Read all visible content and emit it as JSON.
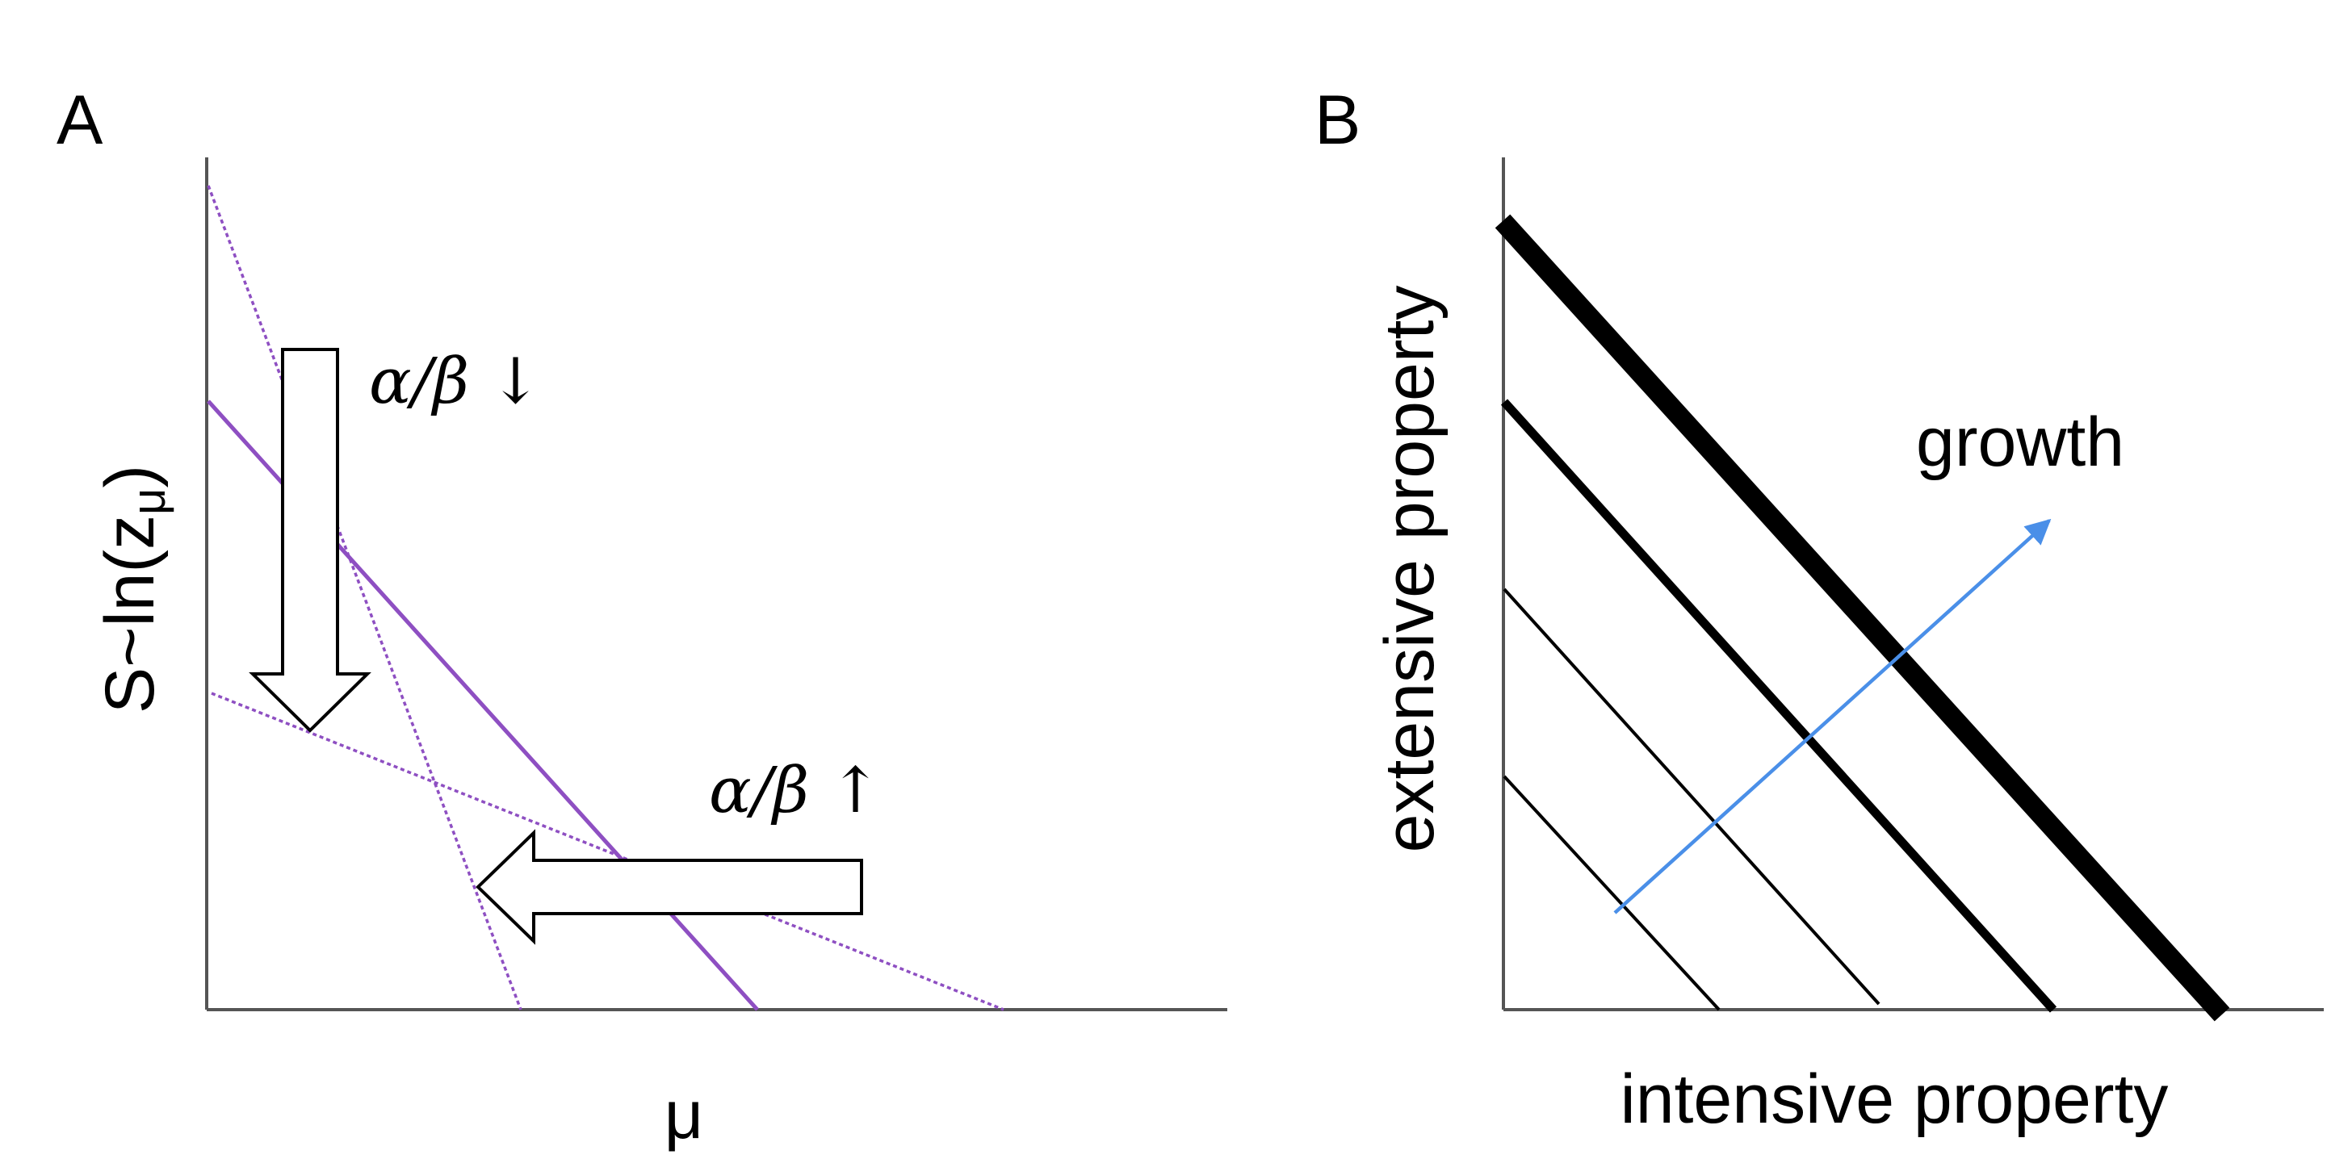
{
  "panel_a": {
    "letter": "A",
    "y_axis_label": "S~ln(z",
    "y_axis_label_sub": "μ",
    "y_axis_label_close": ")",
    "x_axis_label": "μ",
    "annotation_down": "α/β ↓",
    "annotation_up": "α/β ↑",
    "line_color": "#8e4fc2"
  },
  "panel_b": {
    "letter": "B",
    "y_axis_label": "extensive property",
    "x_axis_label": "intensive property",
    "arrow_label": "growth",
    "arrow_color": "#4a8fe8",
    "line_color": "#000000"
  }
}
